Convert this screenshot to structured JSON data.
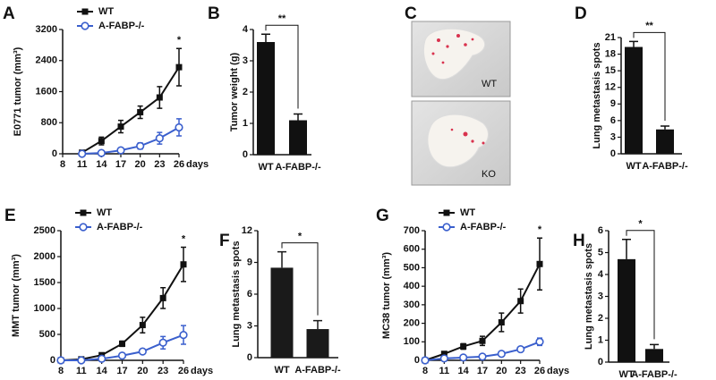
{
  "chart_data": [
    {
      "type": "line",
      "panel": "A",
      "ylabel": "E0771  tumor (mm³)",
      "xlabel": "days",
      "x": [
        11,
        14,
        17,
        20,
        23,
        26
      ],
      "xlim": [
        8,
        26
      ],
      "xticks": [
        8,
        11,
        14,
        17,
        20,
        23,
        26
      ],
      "ylim": [
        0,
        3200
      ],
      "yticks": [
        0,
        800,
        1600,
        2400,
        3200
      ],
      "annotation": "*",
      "series": [
        {
          "name": "WT",
          "color": "#111111",
          "marker": "square",
          "values": [
            30,
            330,
            700,
            1070,
            1450,
            2230
          ],
          "errors": [
            40,
            100,
            160,
            160,
            280,
            480
          ]
        },
        {
          "name": "A-FABP-/-",
          "color": "#3a5fcd",
          "marker": "circle",
          "values": [
            0,
            20,
            90,
            200,
            400,
            680
          ],
          "errors": [
            null,
            null,
            40,
            80,
            150,
            220
          ]
        }
      ]
    },
    {
      "type": "bar",
      "panel": "B",
      "ylabel": "Tumor weight (g)",
      "categories": [
        "WT",
        "A-FABP-/-"
      ],
      "values": [
        3.6,
        1.1
      ],
      "errors": [
        0.25,
        0.2
      ],
      "color": "#111111",
      "ylim": [
        0,
        4
      ],
      "yticks": [
        0,
        1,
        2,
        3,
        4
      ],
      "annotation": "**"
    },
    {
      "type": "bar",
      "panel": "D",
      "ylabel": "Lung metastasis spots",
      "categories": [
        "WT",
        "A-FABP-/-"
      ],
      "values": [
        19.3,
        4.4
      ],
      "errors": [
        1,
        0.6
      ],
      "color": "#111111",
      "ylim": [
        0,
        21
      ],
      "yticks": [
        0,
        3,
        6,
        9,
        12,
        15,
        18,
        21
      ],
      "annotation": "**"
    },
    {
      "type": "line",
      "panel": "E",
      "ylabel": "MMT tumor (mm³)",
      "xlabel": "days",
      "x": [
        8,
        11,
        14,
        17,
        20,
        23,
        26
      ],
      "xlim": [
        8,
        26
      ],
      "xticks": [
        8,
        11,
        14,
        17,
        20,
        23,
        26
      ],
      "ylim": [
        0,
        2500
      ],
      "yticks": [
        0,
        500,
        1000,
        1500,
        2000,
        2500
      ],
      "annotation": "*",
      "series": [
        {
          "name": "WT",
          "color": "#111111",
          "marker": "square",
          "values": [
            0,
            20,
            100,
            320,
            680,
            1200,
            1850
          ],
          "errors": [
            null,
            null,
            30,
            50,
            150,
            200,
            330
          ]
        },
        {
          "name": "A-FABP-/-",
          "color": "#3a5fcd",
          "marker": "circle",
          "values": [
            0,
            0,
            30,
            90,
            170,
            340,
            490
          ],
          "errors": [
            null,
            null,
            null,
            null,
            40,
            120,
            180
          ]
        }
      ]
    },
    {
      "type": "bar",
      "panel": "F",
      "ylabel": "Lung metastasis spots",
      "categories": [
        "WT",
        "A-FABP-/-"
      ],
      "values": [
        8.5,
        2.7
      ],
      "errors": [
        1.5,
        0.8
      ],
      "color": "#1a1a1a",
      "ylim": [
        0,
        12
      ],
      "yticks": [
        0,
        3,
        6,
        9,
        12
      ],
      "annotation": "*"
    },
    {
      "type": "line",
      "panel": "G",
      "ylabel": "MC38 tumor (mm³)",
      "xlabel": "days",
      "x": [
        8,
        11,
        14,
        17,
        20,
        23,
        26
      ],
      "xlim": [
        8,
        26
      ],
      "xticks": [
        8,
        11,
        14,
        17,
        20,
        23,
        26
      ],
      "ylim": [
        0,
        700
      ],
      "yticks": [
        0,
        100,
        200,
        300,
        400,
        500,
        600,
        700
      ],
      "annotation": "*",
      "series": [
        {
          "name": "WT",
          "color": "#111111",
          "marker": "square",
          "values": [
            0,
            35,
            75,
            105,
            205,
            320,
            520
          ],
          "errors": [
            null,
            10,
            15,
            25,
            50,
            65,
            140
          ]
        },
        {
          "name": "A-FABP-/-",
          "color": "#3a5fcd",
          "marker": "circle",
          "values": [
            0,
            10,
            15,
            20,
            35,
            60,
            100
          ],
          "errors": [
            null,
            null,
            null,
            null,
            null,
            null,
            20
          ]
        }
      ]
    },
    {
      "type": "bar",
      "panel": "H",
      "ylabel": "Lung metastasis spots",
      "categories": [
        "WT",
        "A-FABP-/-"
      ],
      "values": [
        4.7,
        0.6
      ],
      "errors": [
        0.9,
        0.2
      ],
      "color": "#111111",
      "ylim": [
        0,
        6
      ],
      "yticks": [
        0,
        1,
        2,
        3,
        4,
        5,
        6
      ],
      "annotation": "*"
    }
  ],
  "photo_panel": {
    "panel": "C",
    "labels": [
      "WT",
      "KO"
    ]
  }
}
